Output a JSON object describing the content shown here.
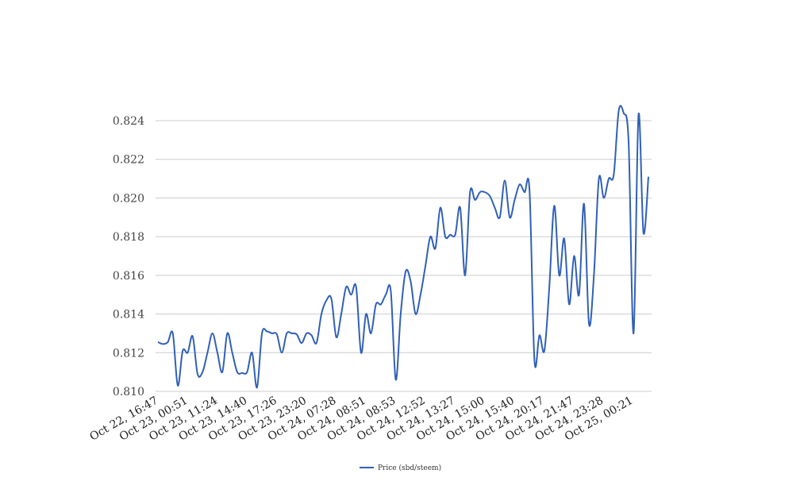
{
  "chart_data": {
    "type": "line",
    "x_tick_labels": [
      "Oct 22, 16:47",
      "Oct 23, 00:51",
      "Oct 23, 11:24",
      "Oct 23, 14:40",
      "Oct 23, 17:26",
      "Oct 23, 23:20",
      "Oct 24, 07:28",
      "Oct 24, 08:51",
      "Oct 24, 08:53",
      "Oct 24, 12:52",
      "Oct 24, 13:27",
      "Oct 24, 15:00",
      "Oct 24, 15:40",
      "Oct 24, 20:17",
      "Oct 24, 21:47",
      "Oct 24, 23:28",
      "Oct 25, 00:21"
    ],
    "y_ticks": [
      0.81,
      0.812,
      0.814,
      0.816,
      0.818,
      0.82,
      0.822,
      0.824
    ],
    "y_tick_labels": [
      "0.810",
      "0.812",
      "0.814",
      "0.816",
      "0.818",
      "0.820",
      "0.822",
      "0.824"
    ],
    "ylim": [
      0.81,
      0.8248
    ],
    "grid": true,
    "legend_position": "bottom-center",
    "series": [
      {
        "name": "Price (sbd/steem)",
        "color": "#3060b8",
        "values": [
          0.81255,
          0.81245,
          0.81255,
          0.813,
          0.8103,
          0.8121,
          0.812,
          0.81285,
          0.8109,
          0.811,
          0.812,
          0.813,
          0.812,
          0.811,
          0.813,
          0.812,
          0.811,
          0.81095,
          0.811,
          0.812,
          0.8102,
          0.813,
          0.8131,
          0.813,
          0.81295,
          0.812,
          0.813,
          0.813,
          0.81295,
          0.8125,
          0.813,
          0.8129,
          0.8125,
          0.814,
          0.8147,
          0.8148,
          0.8128,
          0.814,
          0.8154,
          0.815,
          0.8154,
          0.812,
          0.814,
          0.813,
          0.8145,
          0.8145,
          0.815,
          0.8152,
          0.8106,
          0.814,
          0.8162,
          0.8157,
          0.814,
          0.815,
          0.8165,
          0.818,
          0.8174,
          0.8195,
          0.818,
          0.8181,
          0.8181,
          0.8195,
          0.816,
          0.8203,
          0.8199,
          0.8203,
          0.8203,
          0.8201,
          0.8195,
          0.819,
          0.8209,
          0.819,
          0.8199,
          0.8207,
          0.8203,
          0.8204,
          0.8116,
          0.8129,
          0.8121,
          0.8154,
          0.8196,
          0.816,
          0.8179,
          0.8145,
          0.817,
          0.815,
          0.8197,
          0.8135,
          0.816,
          0.821,
          0.82,
          0.821,
          0.8212,
          0.8245,
          0.8244,
          0.8229,
          0.813,
          0.8243,
          0.8182,
          0.8211
        ]
      }
    ]
  }
}
